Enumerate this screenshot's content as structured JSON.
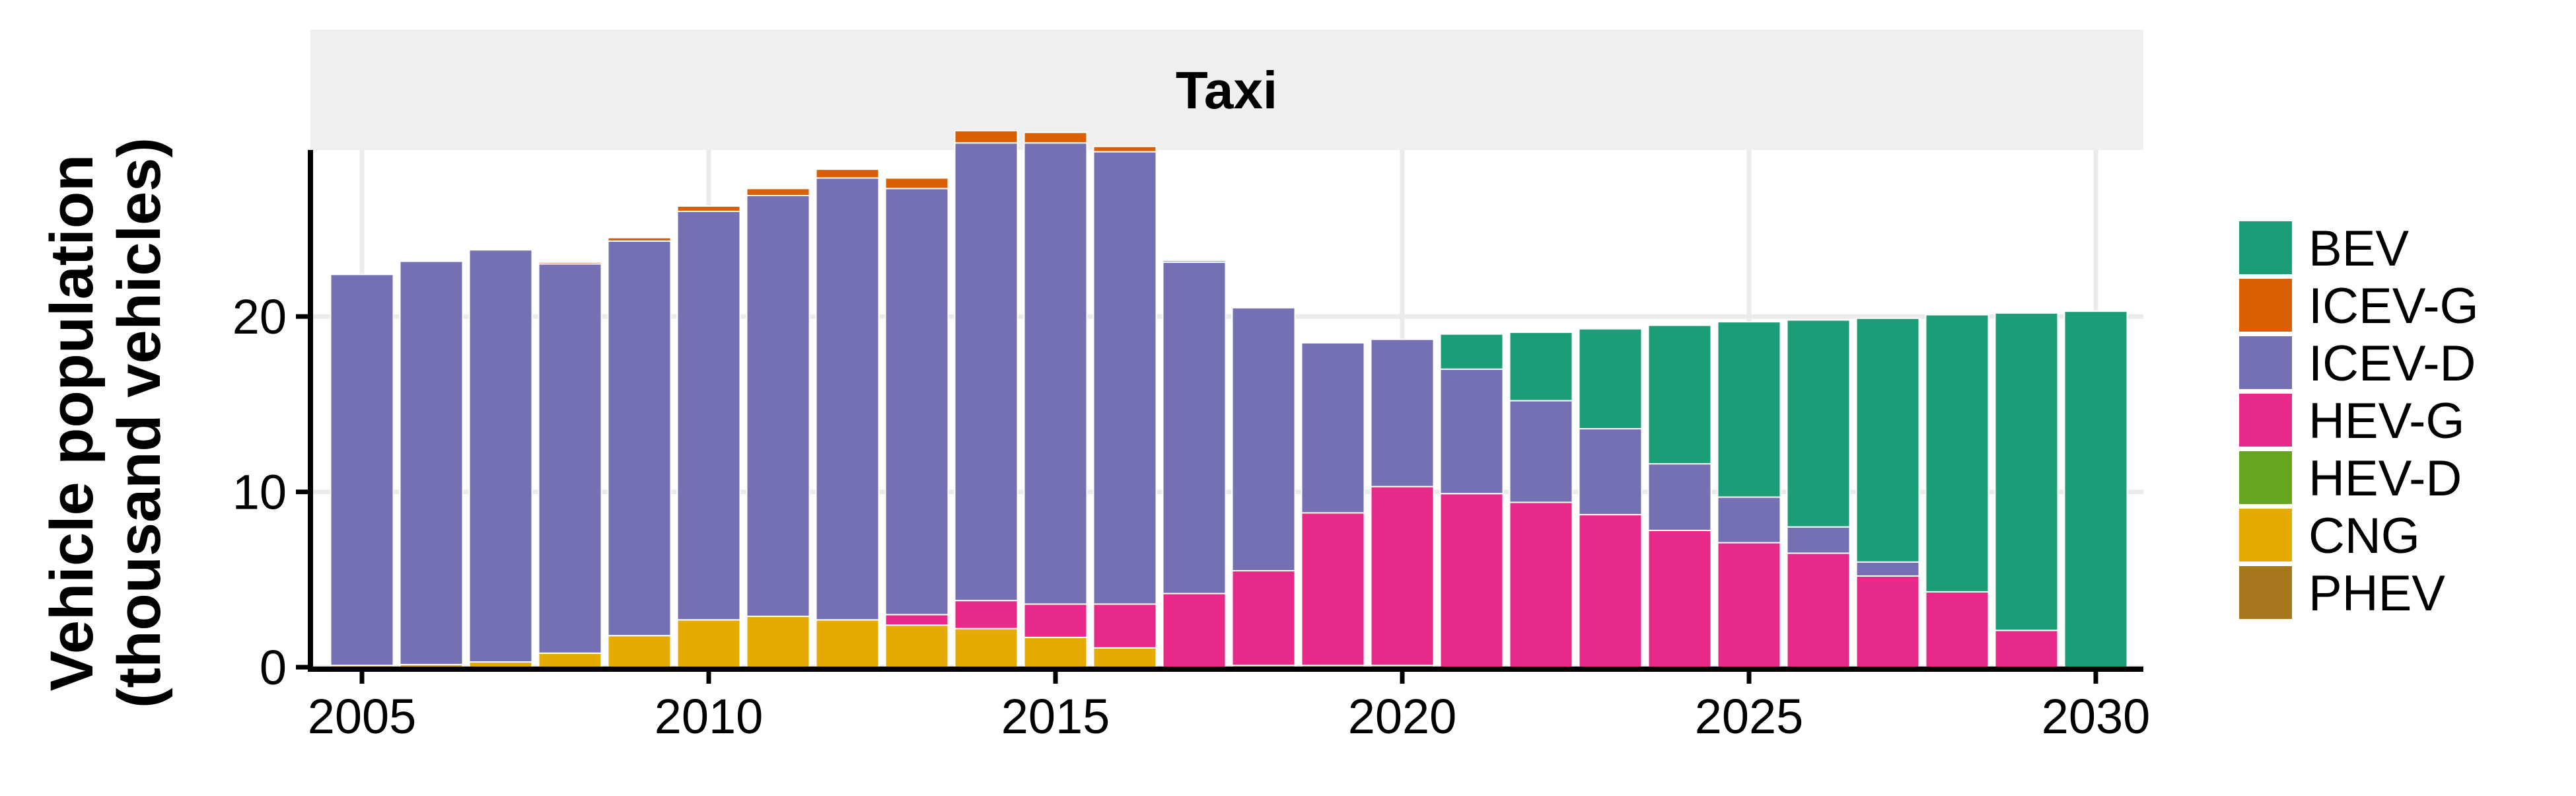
{
  "chart_data": {
    "type": "bar",
    "stacked": true,
    "facet_title": "Taxi",
    "ylabel_line1": "Vehicle population",
    "ylabel_line2": "(thousand vehicles)",
    "xlabel": "",
    "ylim": [
      0,
      29.5
    ],
    "y_ticks": [
      0,
      10,
      20
    ],
    "x_ticks": [
      2005,
      2010,
      2015,
      2020,
      2025,
      2030
    ],
    "grid": true,
    "legend_position": "right",
    "categories": [
      2005,
      2006,
      2007,
      2008,
      2009,
      2010,
      2011,
      2012,
      2013,
      2014,
      2015,
      2016,
      2017,
      2018,
      2019,
      2020,
      2021,
      2022,
      2023,
      2024,
      2025,
      2026,
      2027,
      2028,
      2029,
      2030
    ],
    "series": [
      {
        "name": "PHEV",
        "color": "#a6761d",
        "values": [
          0,
          0,
          0,
          0,
          0,
          0,
          0,
          0,
          0,
          0,
          0,
          0,
          0,
          0,
          0,
          0,
          0,
          0,
          0,
          0,
          0,
          0,
          0,
          0,
          0,
          0
        ]
      },
      {
        "name": "CNG",
        "color": "#e6ab02",
        "values": [
          0.1,
          0.15,
          0.3,
          0.8,
          1.8,
          2.7,
          2.9,
          2.7,
          2.4,
          2.2,
          1.7,
          1.1,
          0,
          0,
          0,
          0,
          0,
          0,
          0,
          0,
          0,
          0,
          0,
          0,
          0,
          0
        ]
      },
      {
        "name": "HEV-D",
        "color": "#66a61e",
        "values": [
          0,
          0,
          0,
          0,
          0,
          0,
          0,
          0,
          0,
          0,
          0,
          0,
          0,
          0.1,
          0.1,
          0.1,
          0,
          0,
          0,
          0,
          0,
          0,
          0,
          0,
          0,
          0
        ]
      },
      {
        "name": "HEV-G",
        "color": "#e7298a",
        "values": [
          0,
          0,
          0,
          0,
          0,
          0,
          0,
          0,
          0.6,
          1.6,
          1.9,
          2.5,
          4.2,
          5.4,
          8.7,
          10.2,
          9.9,
          9.4,
          8.7,
          7.8,
          7.1,
          6.5,
          5.2,
          4.3,
          2.1,
          0
        ]
      },
      {
        "name": "ICEV-D",
        "color": "#7570b3",
        "values": [
          22.3,
          23.0,
          23.5,
          22.2,
          22.5,
          23.3,
          24.0,
          25.2,
          24.3,
          26.1,
          26.3,
          25.8,
          18.9,
          15.0,
          9.7,
          8.4,
          7.1,
          5.8,
          4.9,
          3.8,
          2.6,
          1.5,
          0.8,
          0,
          0,
          0
        ]
      },
      {
        "name": "ICEV-G",
        "color": "#d95f02",
        "values": [
          0,
          0,
          0,
          0.1,
          0.2,
          0.3,
          0.4,
          0.5,
          0.6,
          0.7,
          0.6,
          0.3,
          0.1,
          0,
          0,
          0,
          0,
          0,
          0,
          0,
          0,
          0,
          0,
          0,
          0,
          0
        ]
      },
      {
        "name": "BEV",
        "color": "#1b9e77",
        "values": [
          0,
          0,
          0,
          0,
          0,
          0,
          0,
          0,
          0,
          0,
          0,
          0,
          0,
          0,
          0,
          0,
          2.0,
          3.9,
          5.7,
          7.9,
          10.0,
          11.8,
          13.9,
          15.8,
          18.1,
          20.3
        ]
      }
    ],
    "legend_order": [
      "BEV",
      "ICEV-G",
      "ICEV-D",
      "HEV-G",
      "HEV-D",
      "CNG",
      "PHEV"
    ]
  }
}
